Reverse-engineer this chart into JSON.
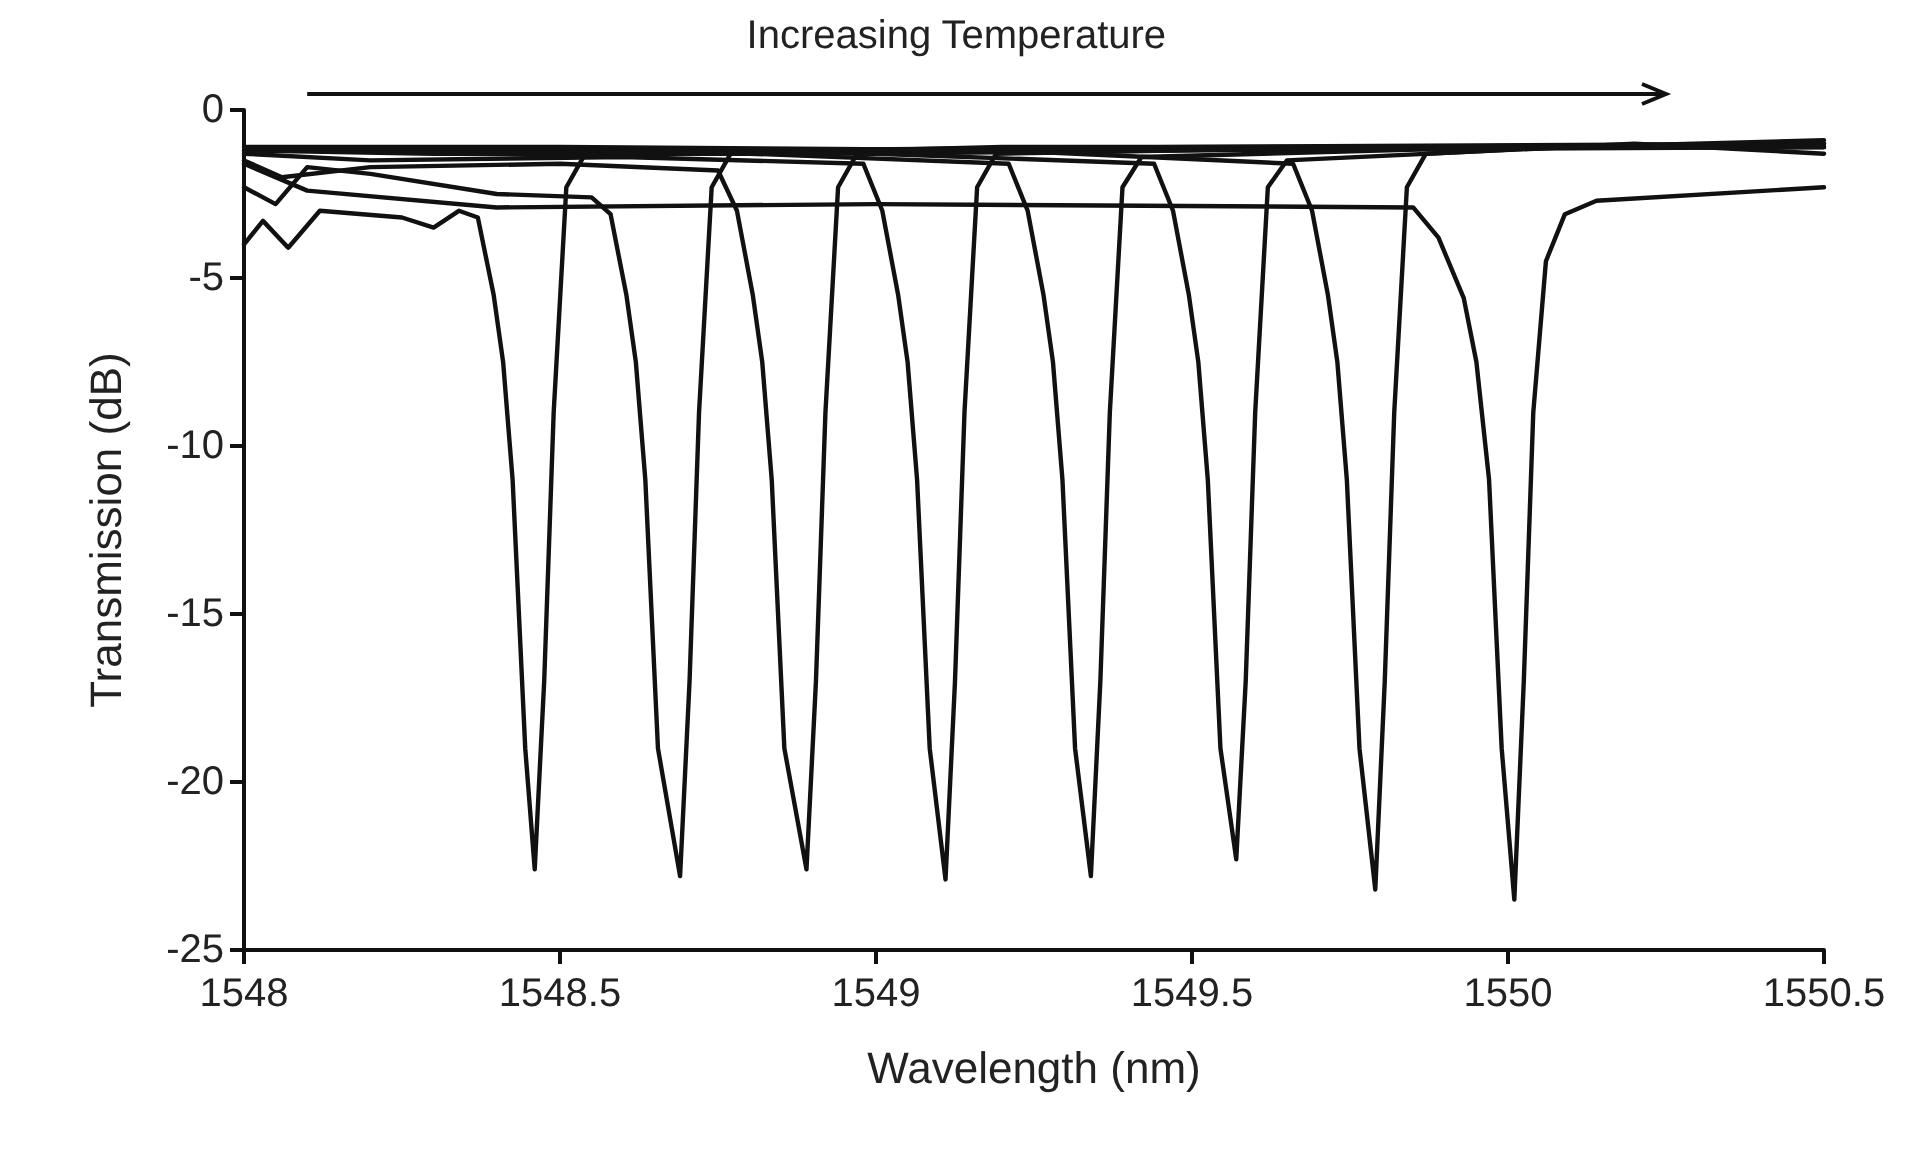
{
  "chart_data": {
    "type": "line",
    "xlabel": "Wavelength (nm)",
    "ylabel": "Transmission (dB)",
    "annotations": [
      "Increasing Temperature"
    ],
    "xlim": [
      1548,
      1550.5
    ],
    "xticks": [
      1548,
      1548.5,
      1549,
      1549.5,
      1550,
      1550.5
    ],
    "ylim": [
      -25,
      0
    ],
    "yticks": [
      0,
      -5,
      -10,
      -15,
      -20,
      -25
    ],
    "marker": "none",
    "line_style": "solid",
    "series": [
      {
        "color": "#111111",
        "x": [
          1548,
          1548.03,
          1548.07,
          1548.12,
          1548.25,
          1548.3,
          1548.34,
          1548.37,
          1548.395,
          1548.41,
          1548.425,
          1548.445,
          1548.46,
          1548.475,
          1548.49,
          1548.51,
          1548.54,
          1548.8,
          1549.5,
          1550.5
        ],
        "values": [
          -4,
          -3.3,
          -4.1,
          -3,
          -3.2,
          -3.5,
          -3,
          -3.2,
          -5.5,
          -7.5,
          -11,
          -19,
          -22.6,
          -17,
          -9,
          -2.3,
          -1.3,
          -1.2,
          -1.1,
          -1
        ]
      },
      {
        "color": "#111111",
        "x": [
          1548,
          1548.05,
          1548.1,
          1548.2,
          1548.4,
          1548.55,
          1548.58,
          1548.605,
          1548.62,
          1548.635,
          1548.655,
          1548.69,
          1548.705,
          1548.72,
          1548.74,
          1548.77,
          1549.2,
          1550.5
        ],
        "values": [
          -2.3,
          -2.8,
          -1.7,
          -1.9,
          -2.5,
          -2.6,
          -3.1,
          -5.5,
          -7.5,
          -11,
          -19,
          -22.8,
          -17,
          -9,
          -2.3,
          -1.3,
          -1.1,
          -1.1
        ]
      },
      {
        "color": "#111111",
        "x": [
          1548,
          1548.06,
          1548.2,
          1548.5,
          1548.75,
          1548.78,
          1548.805,
          1548.82,
          1548.835,
          1548.855,
          1548.89,
          1548.905,
          1548.92,
          1548.94,
          1548.97,
          1549.5,
          1550.5
        ],
        "values": [
          -1.5,
          -2,
          -1.7,
          -1.6,
          -1.8,
          -3,
          -5.5,
          -7.5,
          -11,
          -19,
          -22.6,
          -17,
          -9,
          -2.3,
          -1.3,
          -1.2,
          -1.1
        ]
      },
      {
        "color": "#111111",
        "x": [
          1548,
          1548.2,
          1548.6,
          1548.98,
          1549.01,
          1549.035,
          1549.05,
          1549.065,
          1549.085,
          1549.11,
          1549.125,
          1549.14,
          1549.16,
          1549.19,
          1549.8,
          1550.5
        ],
        "values": [
          -1.3,
          -1.5,
          -1.4,
          -1.6,
          -3,
          -5.5,
          -7.5,
          -11,
          -19,
          -22.9,
          -17,
          -9,
          -2.3,
          -1.3,
          -1.1,
          -1
        ]
      },
      {
        "color": "#111111",
        "x": [
          1548,
          1548.3,
          1548.8,
          1549.21,
          1549.24,
          1549.265,
          1549.28,
          1549.295,
          1549.315,
          1549.34,
          1549.355,
          1549.37,
          1549.39,
          1549.42,
          1550,
          1550.5
        ],
        "values": [
          -1.2,
          -1.3,
          -1.3,
          -1.6,
          -3,
          -5.5,
          -7.5,
          -11,
          -19,
          -22.8,
          -17,
          -9,
          -2.3,
          -1.4,
          -1.1,
          -1.1
        ]
      },
      {
        "color": "#111111",
        "x": [
          1548,
          1548.5,
          1549,
          1549.44,
          1549.47,
          1549.495,
          1549.51,
          1549.525,
          1549.545,
          1549.57,
          1549.585,
          1549.6,
          1549.62,
          1549.65,
          1550.1,
          1550.5
        ],
        "values": [
          -1.2,
          -1.2,
          -1.3,
          -1.6,
          -3,
          -5.5,
          -7.5,
          -11,
          -19,
          -22.3,
          -17,
          -9,
          -2.3,
          -1.5,
          -1.1,
          -0.9
        ]
      },
      {
        "color": "#111111",
        "x": [
          1548,
          1548.5,
          1549.2,
          1549.66,
          1549.69,
          1549.715,
          1549.73,
          1549.745,
          1549.765,
          1549.79,
          1549.805,
          1549.82,
          1549.84,
          1549.87,
          1550.2,
          1550.5
        ],
        "values": [
          -1.1,
          -1.1,
          -1.2,
          -1.6,
          -3,
          -5.5,
          -7.5,
          -11,
          -19,
          -23.2,
          -17,
          -9,
          -2.3,
          -1.3,
          -1,
          -1.3
        ]
      },
      {
        "color": "#111111",
        "x": [
          1548,
          1548.1,
          1548.4,
          1549,
          1549.85,
          1549.89,
          1549.93,
          1549.95,
          1549.97,
          1549.99,
          1550.01,
          1550.025,
          1550.04,
          1550.06,
          1550.09,
          1550.14,
          1550.5
        ],
        "values": [
          -1.6,
          -2.4,
          -2.9,
          -2.8,
          -2.9,
          -3.8,
          -5.6,
          -7.5,
          -11,
          -19,
          -23.5,
          -17,
          -9,
          -4.5,
          -3.1,
          -2.7,
          -2.3
        ]
      }
    ]
  }
}
